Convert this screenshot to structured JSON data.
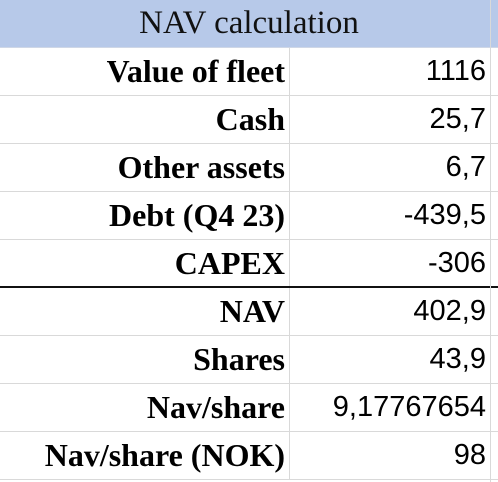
{
  "table": {
    "title": "NAV calculation",
    "rows": [
      {
        "label": "Value of fleet",
        "value": "1116"
      },
      {
        "label": "Cash",
        "value": "25,7"
      },
      {
        "label": "Other assets",
        "value": "6,7"
      },
      {
        "label": "Debt (Q4 23)",
        "value": "-439,5"
      },
      {
        "label": "CAPEX",
        "value": "-306"
      },
      {
        "label": "NAV",
        "value": "402,9"
      },
      {
        "label": "Shares",
        "value": "43,9"
      },
      {
        "label": "Nav/share",
        "value": "9,17767654"
      },
      {
        "label": "Nav/share (NOK)",
        "value": "98"
      }
    ]
  },
  "colors": {
    "header_background": "#b7c9e9",
    "gridline": "#d9d9d9",
    "separator": "#111111"
  }
}
